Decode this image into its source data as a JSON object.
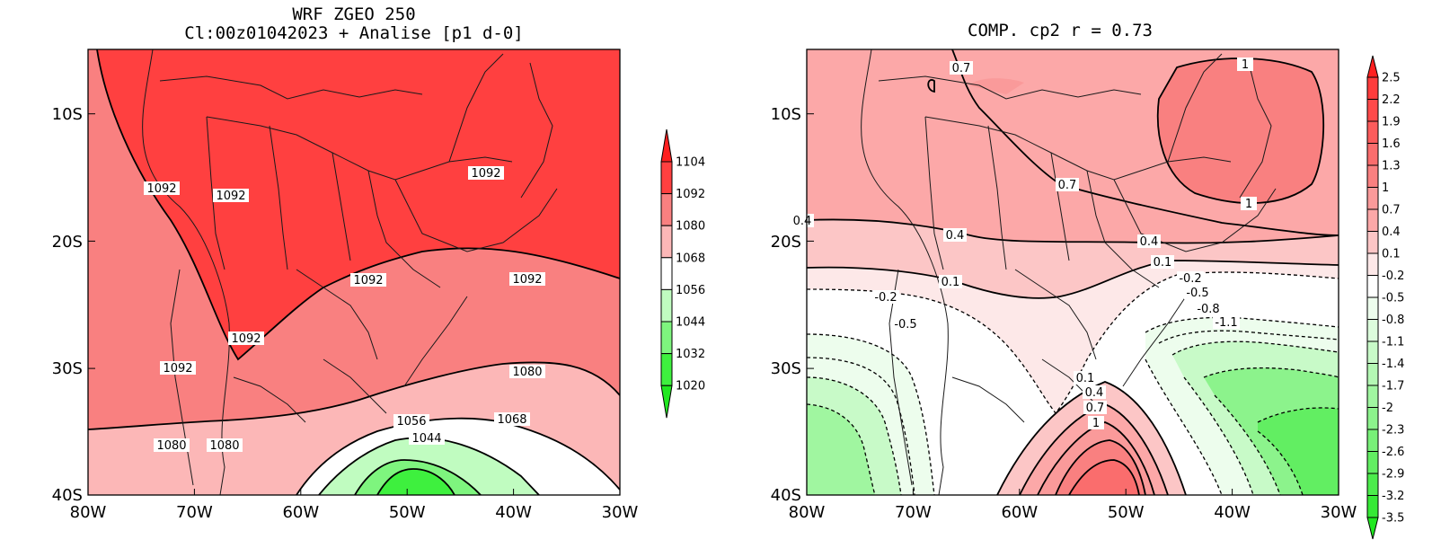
{
  "chart_data": [
    {
      "type": "heatmap",
      "title": "WRF ZGEO 250",
      "subtitle": "Cl:00z01042023 + Analise  [p1 d-0]",
      "x_ticks": [
        "80W",
        "70W",
        "60W",
        "50W",
        "40W",
        "30W"
      ],
      "y_ticks": [
        "10S",
        "20S",
        "30S",
        "40S"
      ],
      "lon_range": [
        -80,
        -30
      ],
      "lat_range": [
        -40,
        -5
      ],
      "colorbar": {
        "levels": [
          "1104",
          "1092",
          "1080",
          "1068",
          "1056",
          "1044",
          "1032",
          "1020"
        ],
        "colors": [
          "#ff2020",
          "#ff4040",
          "#f98080",
          "#fcb7b7",
          "#ffffff",
          "#c0fcc0",
          "#7ef57e",
          "#3ef03e",
          "#20e820"
        ]
      },
      "contour_labels": [
        "1092",
        "1092",
        "1092",
        "1092",
        "1092",
        "1092",
        "1092",
        "1080",
        "1068",
        "1056",
        "1044",
        "1080",
        "1080"
      ]
    },
    {
      "type": "heatmap",
      "title": "COMP. cp2  r =  0.73",
      "x_ticks": [
        "80W",
        "70W",
        "60W",
        "50W",
        "40W",
        "30W"
      ],
      "y_ticks": [
        "10S",
        "20S",
        "30S",
        "40S"
      ],
      "lon_range": [
        -80,
        -30
      ],
      "lat_range": [
        -40,
        -5
      ],
      "colorbar": {
        "levels": [
          "2.5",
          "2.2",
          "1.9",
          "1.6",
          "1.3",
          "1",
          "0.7",
          "0.4",
          "0.1",
          "-0.2",
          "-0.5",
          "-0.8",
          "-1.1",
          "-1.4",
          "-1.7",
          "-2",
          "-2.3",
          "-2.6",
          "-2.9",
          "-3.2",
          "-3.5"
        ],
        "colors": [
          "#ff2020",
          "#ff3c3c",
          "#ff4a4a",
          "#fc5c5c",
          "#fa6d6d",
          "#f98080",
          "#fa9a9a",
          "#fca8a8",
          "#fcc6c6",
          "#fde8e8",
          "#ffffff",
          "#edfded",
          "#dcfcdc",
          "#c8fac8",
          "#b4f8b4",
          "#a0f6a0",
          "#8cf38c",
          "#78f078",
          "#62ee62",
          "#4cec4c",
          "#36e936",
          "#20e820"
        ]
      },
      "contour_labels": [
        "0.7",
        "1",
        "0.7",
        "1",
        "0.4",
        "0.4",
        "0.4",
        "0.1",
        "0.1",
        "-0.2",
        "-0.5",
        "-0.8",
        "-1.1",
        "-0.2",
        "-0.5",
        "0.1",
        "0.4",
        "0.7",
        "1"
      ]
    }
  ]
}
